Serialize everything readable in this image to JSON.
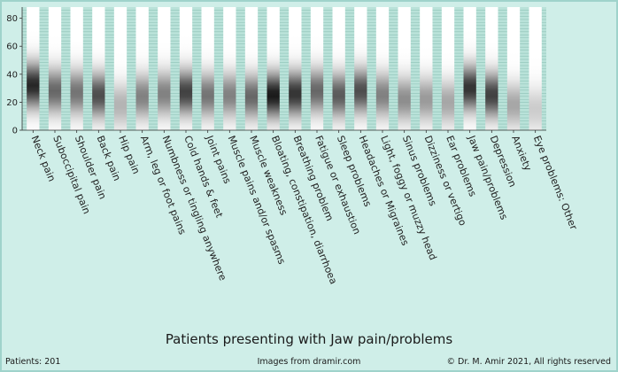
{
  "chart_data": {
    "type": "heatmap",
    "title": "Patients presenting with Jaw pain/problems",
    "ylim": [
      0,
      88
    ],
    "yticks": [
      0,
      20,
      40,
      60,
      80
    ],
    "grid": true,
    "categories": [
      "Neck pain",
      "Suboccipital pain",
      "Shoulder pain",
      "Back pain",
      "Hip pain",
      "Arm, leg or foot pains",
      "Numbness or tingling anywhere",
      "Cold hands & feet",
      "Joint pains",
      "Muscle pains and/or spasms",
      "Muscle weakness",
      "Bloating, constipation, diarrhoea",
      "Breathing problem",
      "Fatigue or exhaustion",
      "Sleep problems",
      "Headaches or Migraines",
      "Light, foggy or muzzy head",
      "Sinus problems",
      "Dizziness or vertigo",
      "Ear problems",
      "Jaw pain/problems",
      "Depression",
      "Anxiety",
      "Eye problems: Other"
    ],
    "series": [
      {
        "values": [
          32,
          28,
          27,
          25,
          18,
          24,
          26,
          27,
          25,
          25,
          24,
          25,
          26,
          28,
          25,
          28,
          25,
          22,
          22,
          20,
          30,
          25,
          18,
          15
        ],
        "intensity": [
          0.85,
          0.6,
          0.55,
          0.7,
          0.3,
          0.5,
          0.5,
          0.75,
          0.55,
          0.5,
          0.6,
          0.9,
          0.8,
          0.6,
          0.65,
          0.7,
          0.5,
          0.45,
          0.4,
          0.35,
          0.8,
          0.75,
          0.35,
          0.2
        ]
      }
    ]
  },
  "footer": {
    "patients": "Patients: 201",
    "images": "Images from dramir.com",
    "copyright": "© Dr. M. Amir 2021, All rights reserved"
  }
}
